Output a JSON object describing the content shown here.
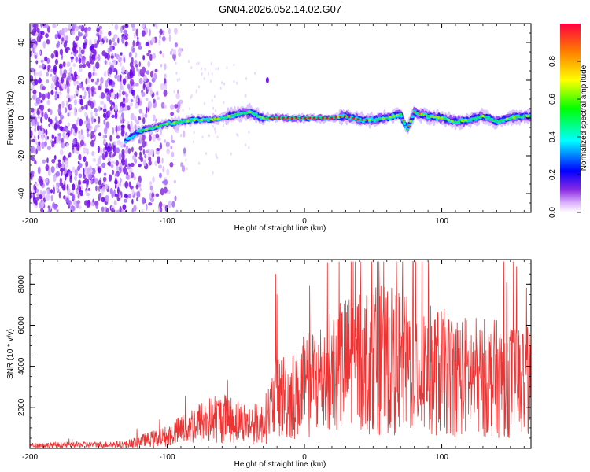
{
  "title": "GN04.2026.052.14.02.G07",
  "chart_data": [
    {
      "type": "heatmap",
      "title": "GN04.2026.052.14.02.G07",
      "xlabel": "Height of straight line (km)",
      "ylabel": "Frequency (Hz)",
      "xlim": [
        -200,
        165
      ],
      "ylim": [
        -50,
        50
      ],
      "xticks": [
        -200,
        -100,
        0,
        100
      ],
      "yticks": [
        -40,
        -20,
        0,
        20,
        40
      ],
      "colorbar": {
        "label": "Normalized spectral amplitude",
        "range": [
          0,
          1
        ],
        "ticks": [
          0.0,
          0.2,
          0.4,
          0.6,
          0.8
        ]
      },
      "ridge": {
        "height_km": [
          -130,
          -120,
          -110,
          -100,
          -90,
          -80,
          -70,
          -60,
          -50,
          -40,
          -30,
          -20,
          -10,
          0,
          10,
          20,
          30,
          40,
          50,
          60,
          70,
          75,
          80,
          90,
          100,
          110,
          120,
          130,
          140,
          150,
          160
        ],
        "frequency_hz": [
          -12,
          -7,
          -5,
          -3,
          -2,
          -1,
          -1,
          0,
          2,
          3,
          0,
          0,
          0,
          0,
          0,
          0,
          1,
          -1,
          -1,
          0,
          2,
          -6,
          3,
          1,
          0,
          -2,
          -1,
          1,
          -2,
          0,
          1
        ]
      },
      "noise_region_km": [
        -200,
        -95
      ]
    },
    {
      "type": "line",
      "xlabel": "Height of straight line (km)",
      "ylabel": "SNR (10 * v/v)",
      "xlim": [
        -200,
        165
      ],
      "ylim": [
        0,
        9200
      ],
      "xticks": [
        -200,
        -100,
        0,
        100
      ],
      "yticks": [
        2000,
        4000,
        6000,
        8000
      ],
      "series": [
        {
          "name": "SNR",
          "color": "#ee3333",
          "envelope_height_km": [
            -200,
            -130,
            -120,
            -100,
            -90,
            -80,
            -60,
            -40,
            -30,
            -20,
            -10,
            0,
            20,
            40,
            60,
            80,
            100,
            120,
            140,
            160
          ],
          "envelope_mean_snr": [
            150,
            200,
            350,
            600,
            900,
            1200,
            1500,
            1200,
            1200,
            2600,
            2500,
            3000,
            3800,
            4300,
            4300,
            4000,
            3700,
            3500,
            3400,
            3300
          ],
          "peaks": [
            {
              "height_km": -21,
              "snr": 8500
            },
            {
              "height_km": 34,
              "snr": 9100
            },
            {
              "height_km": 53,
              "snr": 9100
            },
            {
              "height_km": 79,
              "snr": 9100
            }
          ]
        }
      ]
    }
  ]
}
